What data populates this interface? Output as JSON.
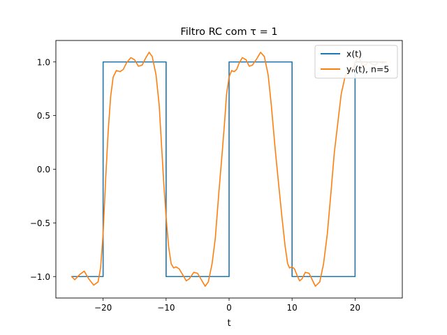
{
  "chart_data": {
    "type": "line",
    "title": "Filtro RC com τ = 1",
    "xlabel": "t",
    "ylabel": "",
    "xlim": [
      -27.5,
      27.5
    ],
    "ylim": [
      -1.2,
      1.2
    ],
    "xticks": [
      -20,
      -10,
      0,
      10,
      20
    ],
    "xtick_labels": [
      "−20",
      "−10",
      "0",
      "10",
      "20"
    ],
    "yticks": [
      -1.0,
      -0.5,
      0.0,
      0.5,
      1.0
    ],
    "ytick_labels": [
      "−1.0",
      "−0.5",
      "0.0",
      "0.5",
      "1.0"
    ],
    "grid": false,
    "legend": "top-right",
    "series": [
      {
        "name": "x(t)",
        "color": "#1f77b4",
        "x": [
          -25,
          -20,
          -20,
          -10,
          -10,
          0,
          0,
          10,
          10,
          20,
          20,
          25
        ],
        "y": [
          -1,
          -1,
          1,
          1,
          -1,
          -1,
          1,
          1,
          -1,
          -1,
          1,
          1
        ]
      },
      {
        "name": "yₙ(t), n=5",
        "color": "#ff7f0e",
        "x": [
          -25,
          -24.5,
          -23.7,
          -23,
          -22.3,
          -21.5,
          -20.8,
          -20.4,
          -20,
          -19.6,
          -19.2,
          -18.8,
          -18.4,
          -17.9,
          -17.3,
          -16.8,
          -16.3,
          -15.6,
          -15.0,
          -14.4,
          -13.8,
          -13.3,
          -12.7,
          -12.2,
          -11.6,
          -11.1,
          -10.7,
          -10.4,
          -10.0,
          -9.6,
          -9.2,
          -8.8,
          -8.4,
          -7.9,
          -7.3,
          -6.8,
          -6.3,
          -5.6,
          -5.0,
          -4.4,
          -3.8,
          -3.3,
          -2.7,
          -2.2,
          -1.6,
          -1.1,
          -0.7,
          -0.4,
          0,
          0.4,
          0.8,
          1.2,
          1.6,
          2.1,
          2.7,
          3.2,
          3.7,
          4.4,
          5.0,
          5.6,
          6.2,
          6.7,
          7.3,
          7.8,
          8.4,
          8.9,
          9.3,
          9.6,
          10.0,
          10.4,
          10.8,
          11.2,
          11.6,
          12.1,
          12.7,
          13.2,
          13.7,
          14.4,
          15.0,
          15.6,
          16.2,
          16.7,
          17.3,
          17.8,
          18.4,
          18.9,
          19.3,
          19.6,
          20.0,
          20.4,
          20.8,
          21.2,
          21.6,
          22.1,
          22.7,
          23.2,
          23.7,
          24.4,
          25
        ],
        "y": [
          -1.0,
          -1.03,
          -0.98,
          -0.95,
          -1.02,
          -1.08,
          -1.05,
          -0.92,
          -0.6,
          -0.1,
          0.35,
          0.68,
          0.86,
          0.92,
          0.91,
          0.93,
          0.99,
          1.04,
          1.02,
          0.96,
          0.97,
          1.03,
          1.09,
          1.05,
          0.88,
          0.6,
          0.2,
          -0.1,
          -0.45,
          -0.72,
          -0.88,
          -0.92,
          -0.91,
          -0.93,
          -0.99,
          -1.04,
          -1.02,
          -0.96,
          -0.97,
          -1.03,
          -1.09,
          -1.05,
          -0.88,
          -0.65,
          -0.2,
          0.15,
          0.45,
          0.7,
          0.86,
          0.92,
          0.91,
          0.93,
          0.99,
          1.04,
          1.02,
          0.96,
          0.97,
          1.03,
          1.09,
          1.05,
          0.88,
          0.6,
          0.2,
          -0.1,
          -0.45,
          -0.72,
          -0.88,
          -0.92,
          -0.91,
          -0.93,
          -0.99,
          -1.04,
          -1.02,
          -0.96,
          -0.97,
          -1.03,
          -1.09,
          -1.05,
          -0.88,
          -0.6,
          -0.2,
          0.15,
          0.45,
          0.7,
          0.86,
          0.92,
          0.91,
          0.93,
          0.99,
          1.04,
          1.02,
          0.96,
          0.97,
          1.0,
          0.98,
          0.97,
          1.0,
          0.99,
          1.0
        ]
      }
    ]
  }
}
